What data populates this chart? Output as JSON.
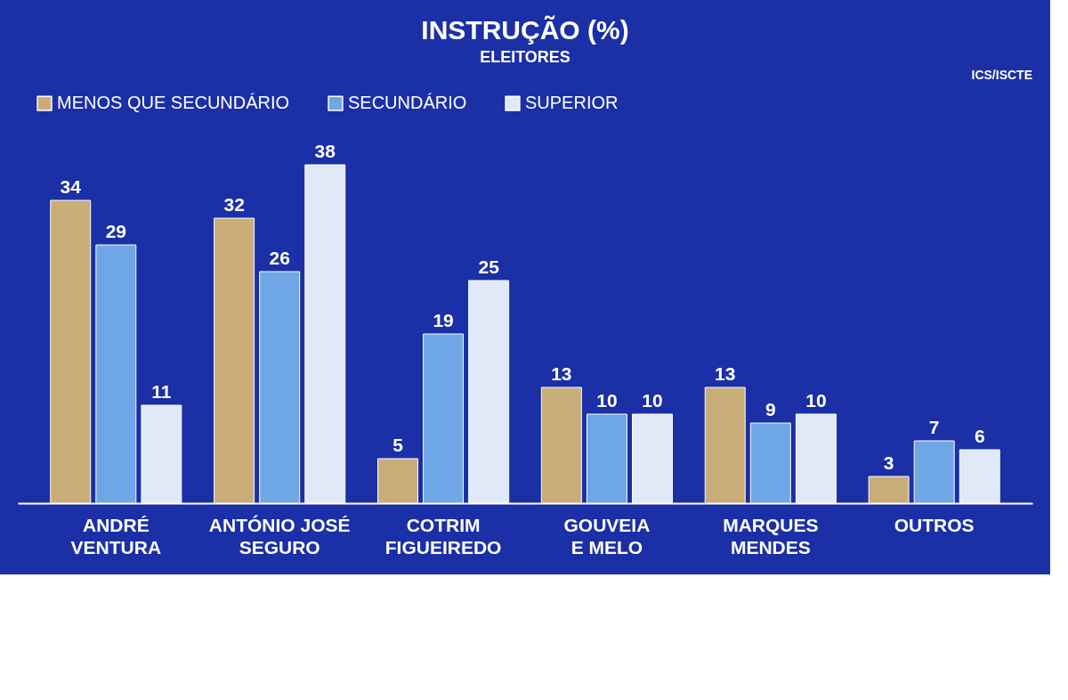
{
  "chart_data": {
    "type": "bar",
    "title": "INSTRUÇÃO (%)",
    "subtitle": "ELEITORES",
    "annotations": [
      "ICS/ISCTE"
    ],
    "categories": [
      "ANDRÉ\nVENTURA",
      "ANTÓNIO JOSÉ\nSEGURO",
      "COTRIM\nFIGUEIREDO",
      "GOUVEIA\nE MELO",
      "MARQUES\nMENDES",
      "OUTROS"
    ],
    "series": [
      {
        "name": "MENOS QUE SECUNDÁRIO",
        "color": "#c9ad78",
        "values": [
          34,
          32,
          5,
          13,
          13,
          3
        ]
      },
      {
        "name": "SECUNDÁRIO",
        "color": "#6fa6e6",
        "values": [
          29,
          26,
          19,
          10,
          9,
          7
        ]
      },
      {
        "name": "SUPERIOR",
        "color": "#dfe9f7",
        "values": [
          11,
          38,
          25,
          10,
          10,
          6
        ]
      }
    ],
    "data_labels": true,
    "legend": "top",
    "grid": false
  }
}
